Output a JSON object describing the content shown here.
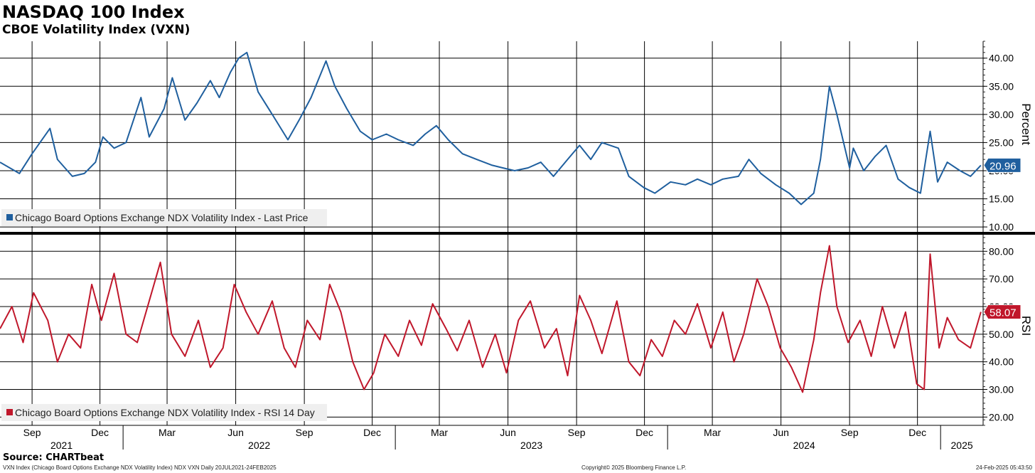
{
  "header": {
    "title": "NASDAQ 100 Index",
    "subtitle": "CBOE Volatility Index (VXN)"
  },
  "source": "Source: CHARTbeat",
  "footer": {
    "left": "VXN Index (Chicago Board Options Exchange NDX Volatility Index) NDX VXN  Daily 20JUL2021-24FEB2025",
    "center": "Copyright© 2025 Bloomberg Finance L.P.",
    "right": "24-Feb-2025 05:43:50"
  },
  "colors": {
    "price": "#1f5f9e",
    "rsi": "#c0172b",
    "grid": "#000000"
  },
  "chart_data": [
    {
      "type": "line",
      "series": [
        {
          "name": "Chicago Board Options Exchange NDX Volatility Index - Last Price",
          "x": [
            "2021-07-20",
            "2021-08-15",
            "2021-09-01",
            "2021-09-25",
            "2021-10-05",
            "2021-10-25",
            "2021-11-10",
            "2021-11-25",
            "2021-12-05",
            "2021-12-20",
            "2022-01-05",
            "2022-01-25",
            "2022-02-05",
            "2022-02-25",
            "2022-03-08",
            "2022-03-25",
            "2022-04-10",
            "2022-04-28",
            "2022-05-10",
            "2022-05-25",
            "2022-06-05",
            "2022-06-16",
            "2022-07-01",
            "2022-07-20",
            "2022-08-10",
            "2022-08-25",
            "2022-09-10",
            "2022-09-30",
            "2022-10-12",
            "2022-10-28",
            "2022-11-15",
            "2022-12-01",
            "2022-12-20",
            "2023-01-05",
            "2023-01-25",
            "2023-02-10",
            "2023-02-25",
            "2023-03-13",
            "2023-04-01",
            "2023-04-20",
            "2023-05-10",
            "2023-05-25",
            "2023-06-10",
            "2023-06-28",
            "2023-07-15",
            "2023-08-01",
            "2023-08-20",
            "2023-09-05",
            "2023-09-20",
            "2023-10-05",
            "2023-10-27",
            "2023-11-10",
            "2023-11-30",
            "2023-12-15",
            "2024-01-05",
            "2024-01-25",
            "2024-02-10",
            "2024-02-28",
            "2024-03-15",
            "2024-04-05",
            "2024-04-19",
            "2024-05-05",
            "2024-05-25",
            "2024-06-12",
            "2024-06-28",
            "2024-07-15",
            "2024-07-24",
            "2024-08-05",
            "2024-08-15",
            "2024-09-01",
            "2024-09-06",
            "2024-09-20",
            "2024-10-05",
            "2024-10-20",
            "2024-11-05",
            "2024-11-20",
            "2024-12-05",
            "2024-12-18",
            "2024-12-28",
            "2025-01-10",
            "2025-01-27",
            "2025-02-10",
            "2025-02-24"
          ],
          "y": [
            21.5,
            19.5,
            23.0,
            27.5,
            22.0,
            19.0,
            19.5,
            21.5,
            26.0,
            24.0,
            25.0,
            33.0,
            26.0,
            31.0,
            36.5,
            29.0,
            32.0,
            36.0,
            33.0,
            37.5,
            40.0,
            41.0,
            34.0,
            30.0,
            25.5,
            29.0,
            33.0,
            39.5,
            35.0,
            31.0,
            27.0,
            25.5,
            26.5,
            25.5,
            24.5,
            26.5,
            28.0,
            25.5,
            23.0,
            22.0,
            21.0,
            20.5,
            20.0,
            20.5,
            21.5,
            19.0,
            22.0,
            24.5,
            22.0,
            25.0,
            24.0,
            19.0,
            17.0,
            16.0,
            18.0,
            17.5,
            18.5,
            17.5,
            18.5,
            19.0,
            22.0,
            19.5,
            17.5,
            16.0,
            14.0,
            16.0,
            22.0,
            35.0,
            30.0,
            20.5,
            24.0,
            20.0,
            22.5,
            24.5,
            18.5,
            17.0,
            16.0,
            27.0,
            18.0,
            21.5,
            20.0,
            19.0,
            20.96
          ]
        }
      ],
      "ylabel": "Percent",
      "ylim": [
        9,
        43
      ],
      "yticks": [
        "40.00",
        "35.00",
        "30.00",
        "25.00",
        "20.00",
        "15.00",
        "10.00"
      ],
      "last_value": "20.96",
      "legend": "bottom-left",
      "grid": true
    },
    {
      "type": "line",
      "series": [
        {
          "name": "Chicago Board Options Exchange NDX Volatility Index - RSI 14 Day",
          "x": [
            "2021-07-20",
            "2021-08-05",
            "2021-08-20",
            "2021-09-03",
            "2021-09-22",
            "2021-10-05",
            "2021-10-20",
            "2021-11-05",
            "2021-11-20",
            "2021-12-03",
            "2021-12-20",
            "2022-01-05",
            "2022-01-20",
            "2022-02-05",
            "2022-02-20",
            "2022-03-07",
            "2022-03-25",
            "2022-04-12",
            "2022-04-28",
            "2022-05-15",
            "2022-05-30",
            "2022-06-15",
            "2022-07-01",
            "2022-07-20",
            "2022-08-05",
            "2022-08-20",
            "2022-09-05",
            "2022-09-22",
            "2022-10-05",
            "2022-10-20",
            "2022-11-05",
            "2022-11-20",
            "2022-12-03",
            "2022-12-18",
            "2023-01-05",
            "2023-01-20",
            "2023-02-05",
            "2023-02-20",
            "2023-03-10",
            "2023-03-25",
            "2023-04-10",
            "2023-04-28",
            "2023-05-15",
            "2023-05-30",
            "2023-06-15",
            "2023-07-01",
            "2023-07-20",
            "2023-08-05",
            "2023-08-20",
            "2023-09-05",
            "2023-09-20",
            "2023-10-05",
            "2023-10-25",
            "2023-11-10",
            "2023-11-25",
            "2023-12-10",
            "2023-12-25",
            "2024-01-10",
            "2024-01-25",
            "2024-02-10",
            "2024-02-28",
            "2024-03-15",
            "2024-03-30",
            "2024-04-12",
            "2024-04-30",
            "2024-05-15",
            "2024-05-31",
            "2024-06-15",
            "2024-06-30",
            "2024-07-15",
            "2024-07-24",
            "2024-08-05",
            "2024-08-15",
            "2024-08-30",
            "2024-09-15",
            "2024-09-30",
            "2024-10-15",
            "2024-10-31",
            "2024-11-15",
            "2024-11-30",
            "2024-12-10",
            "2024-12-18",
            "2024-12-30",
            "2025-01-10",
            "2025-01-25",
            "2025-02-10",
            "2025-02-24"
          ],
          "y": [
            52,
            60,
            47,
            65,
            55,
            40,
            50,
            45,
            68,
            55,
            72,
            50,
            47,
            62,
            76,
            50,
            42,
            55,
            38,
            45,
            68,
            58,
            50,
            62,
            45,
            38,
            55,
            48,
            68,
            58,
            40,
            30,
            36,
            50,
            42,
            55,
            46,
            61,
            52,
            44,
            55,
            38,
            50,
            36,
            55,
            62,
            45,
            52,
            35,
            64,
            55,
            43,
            62,
            40,
            35,
            48,
            42,
            55,
            50,
            61,
            45,
            58,
            40,
            50,
            70,
            60,
            45,
            38,
            29,
            48,
            65,
            82,
            60,
            47,
            55,
            42,
            60,
            45,
            58,
            32,
            30,
            79,
            45,
            56,
            48,
            45,
            58.07
          ]
        }
      ],
      "ylabel": "RSI",
      "ylim": [
        17,
        86
      ],
      "yticks": [
        "80.00",
        "70.00",
        "60.00",
        "50.00",
        "40.00",
        "30.00",
        "20.00"
      ],
      "last_value": "58.07",
      "legend": "bottom-left",
      "grid": true
    }
  ],
  "x_axis": {
    "months": [
      {
        "label": "Sep",
        "date": "2021-09-01"
      },
      {
        "label": "Dec",
        "date": "2021-12-01"
      },
      {
        "label": "Mar",
        "date": "2022-03-01"
      },
      {
        "label": "Jun",
        "date": "2022-06-01"
      },
      {
        "label": "Sep",
        "date": "2022-09-01"
      },
      {
        "label": "Dec",
        "date": "2022-12-01"
      },
      {
        "label": "Mar",
        "date": "2023-03-01"
      },
      {
        "label": "Jun",
        "date": "2023-06-01"
      },
      {
        "label": "Sep",
        "date": "2023-09-01"
      },
      {
        "label": "Dec",
        "date": "2023-12-01"
      },
      {
        "label": "Mar",
        "date": "2024-03-01"
      },
      {
        "label": "Jun",
        "date": "2024-06-01"
      },
      {
        "label": "Sep",
        "date": "2024-09-01"
      },
      {
        "label": "Dec",
        "date": "2024-12-01"
      }
    ],
    "years": [
      {
        "label": "2021",
        "date": "2021-07-20",
        "end": "2022-01-01"
      },
      {
        "label": "2022",
        "date": "2022-01-01",
        "end": "2023-01-01"
      },
      {
        "label": "2023",
        "date": "2023-01-01",
        "end": "2024-01-01"
      },
      {
        "label": "2024",
        "date": "2024-01-01",
        "end": "2025-01-01"
      },
      {
        "label": "2025",
        "date": "2025-01-01",
        "end": "2025-02-27"
      }
    ],
    "start": "2021-07-20",
    "end": "2025-02-27"
  }
}
